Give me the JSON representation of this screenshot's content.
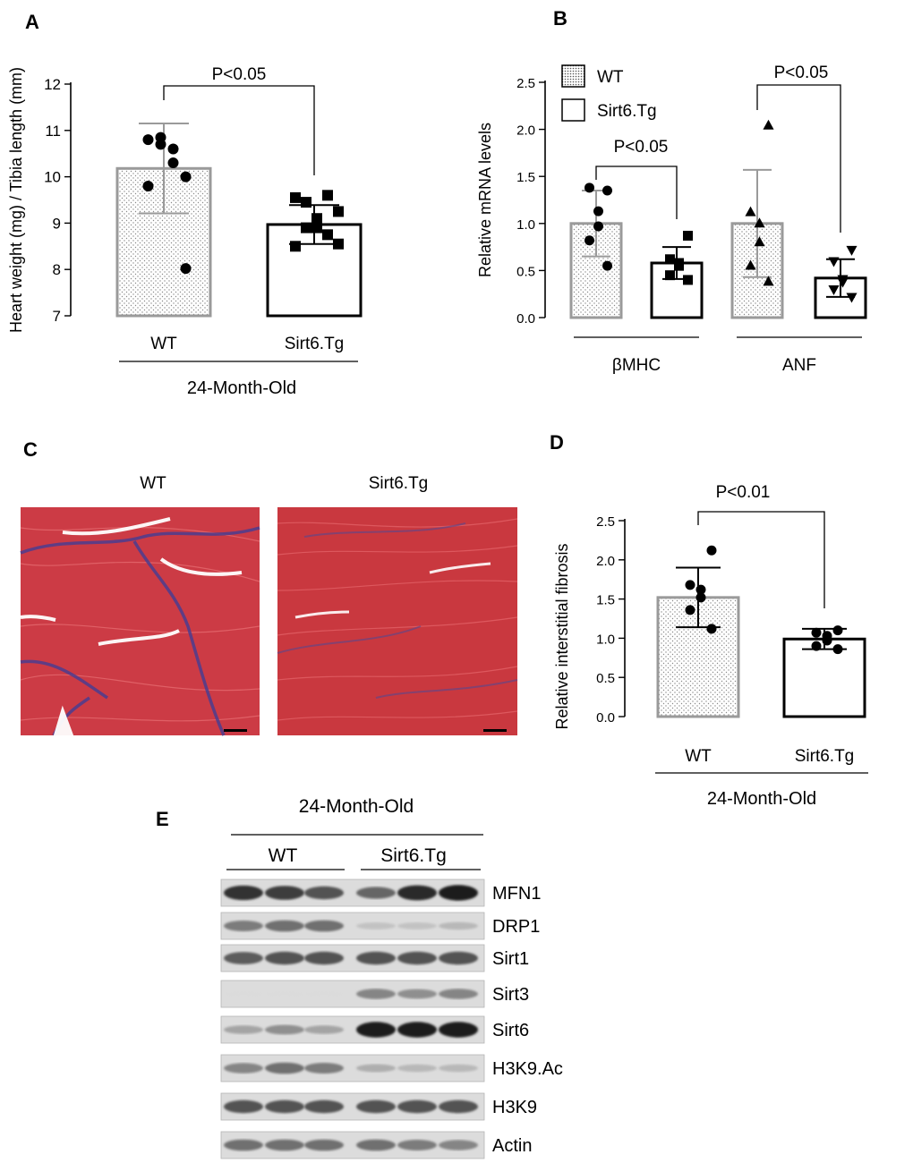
{
  "panels": {
    "a": {
      "letter": "A"
    },
    "b": {
      "letter": "B"
    },
    "c": {
      "letter": "C",
      "labels": [
        "WT",
        "Sirt6.Tg"
      ]
    },
    "d": {
      "letter": "D"
    },
    "e": {
      "letter": "E",
      "age_label": "24-Month-Old",
      "groups": [
        "WT",
        "Sirt6.Tg"
      ],
      "bands": [
        {
          "label": "MFN1",
          "intensities": [
            0.85,
            0.8,
            0.7,
            0.6,
            0.9,
            0.95
          ]
        },
        {
          "label": "DRP1",
          "intensities": [
            0.5,
            0.55,
            0.55,
            0.15,
            0.15,
            0.2
          ]
        },
        {
          "label": "Sirt1",
          "intensities": [
            0.65,
            0.7,
            0.7,
            0.7,
            0.7,
            0.7
          ]
        },
        {
          "label": "Sirt3",
          "intensities": [
            0.03,
            0.03,
            0.03,
            0.45,
            0.4,
            0.45
          ]
        },
        {
          "label": "Sirt6",
          "intensities": [
            0.3,
            0.4,
            0.3,
            0.95,
            0.95,
            0.95
          ]
        },
        {
          "label": "H3K9.Ac",
          "intensities": [
            0.45,
            0.55,
            0.5,
            0.25,
            0.2,
            0.2
          ]
        },
        {
          "label": "H3K9",
          "intensities": [
            0.7,
            0.7,
            0.7,
            0.7,
            0.7,
            0.7
          ]
        },
        {
          "label": "Actin",
          "intensities": [
            0.55,
            0.55,
            0.55,
            0.55,
            0.5,
            0.45
          ]
        }
      ]
    }
  },
  "chart_data": [
    {
      "panel": "A",
      "type": "bar",
      "ylabel": "Heart weight (mg) / Tibia length (mm)",
      "ylim": [
        7,
        12
      ],
      "yticks": [
        7,
        8,
        9,
        10,
        11,
        12
      ],
      "categories": [
        "WT",
        "Sirt6.Tg"
      ],
      "group_label": "24-Month-Old",
      "values": [
        10.18,
        8.97
      ],
      "errors": [
        0.97,
        0.42
      ],
      "points": [
        [
          10.0,
          10.8,
          10.6,
          10.85,
          10.7,
          10.3,
          9.8,
          8.02
        ],
        [
          9.25,
          9.55,
          9.6,
          9.45,
          9.1,
          8.9,
          8.9,
          8.75,
          8.5,
          8.55
        ]
      ],
      "annotations": [
        {
          "text": "P<0.05",
          "between": [
            "WT",
            "Sirt6.Tg"
          ]
        }
      ],
      "legend": "none",
      "grid": false
    },
    {
      "panel": "B",
      "type": "bar",
      "ylabel": "Relative  mRNA levels",
      "ylim": [
        0,
        2.5
      ],
      "yticks": [
        0.0,
        0.5,
        1.0,
        1.5,
        2.0,
        2.5
      ],
      "categories": [
        "βMHC",
        "ANF"
      ],
      "series": [
        {
          "name": "WT",
          "values": [
            1.0,
            1.0
          ],
          "errors": [
            0.35,
            0.57
          ],
          "points": [
            [
              1.35,
              1.38,
              1.13,
              0.97,
              0.82,
              0.55
            ],
            [
              2.04,
              1.12,
              1.0,
              0.8,
              0.55,
              0.38
            ]
          ]
        },
        {
          "name": "Sirt6.Tg",
          "values": [
            0.58,
            0.42
          ],
          "errors": [
            0.17,
            0.2
          ],
          "points": [
            [
              0.87,
              0.62,
              0.58,
              0.55,
              0.45,
              0.4
            ],
            [
              0.72,
              0.6,
              0.41,
              0.38,
              0.3,
              0.22
            ]
          ]
        }
      ],
      "annotations": [
        {
          "text": "P<0.05",
          "category": "βMHC"
        },
        {
          "text": "P<0.05",
          "category": "ANF"
        }
      ],
      "legend": "top-left",
      "grid": false
    },
    {
      "panel": "D",
      "type": "bar",
      "ylabel": "Relative interstitial fibrosis",
      "ylim": [
        0,
        2.5
      ],
      "yticks": [
        0.0,
        0.5,
        1.0,
        1.5,
        2.0,
        2.5
      ],
      "categories": [
        "WT",
        "Sirt6.Tg"
      ],
      "group_label": "24-Month-Old",
      "values": [
        1.52,
        0.99
      ],
      "errors": [
        0.38,
        0.13
      ],
      "points": [
        [
          2.12,
          1.68,
          1.62,
          1.52,
          1.36,
          1.12
        ],
        [
          1.1,
          1.07,
          1.03,
          0.97,
          0.9,
          0.86
        ]
      ],
      "annotations": [
        {
          "text": "P<0.01",
          "between": [
            "WT",
            "Sirt6.Tg"
          ]
        }
      ],
      "legend": "none",
      "grid": false
    }
  ]
}
